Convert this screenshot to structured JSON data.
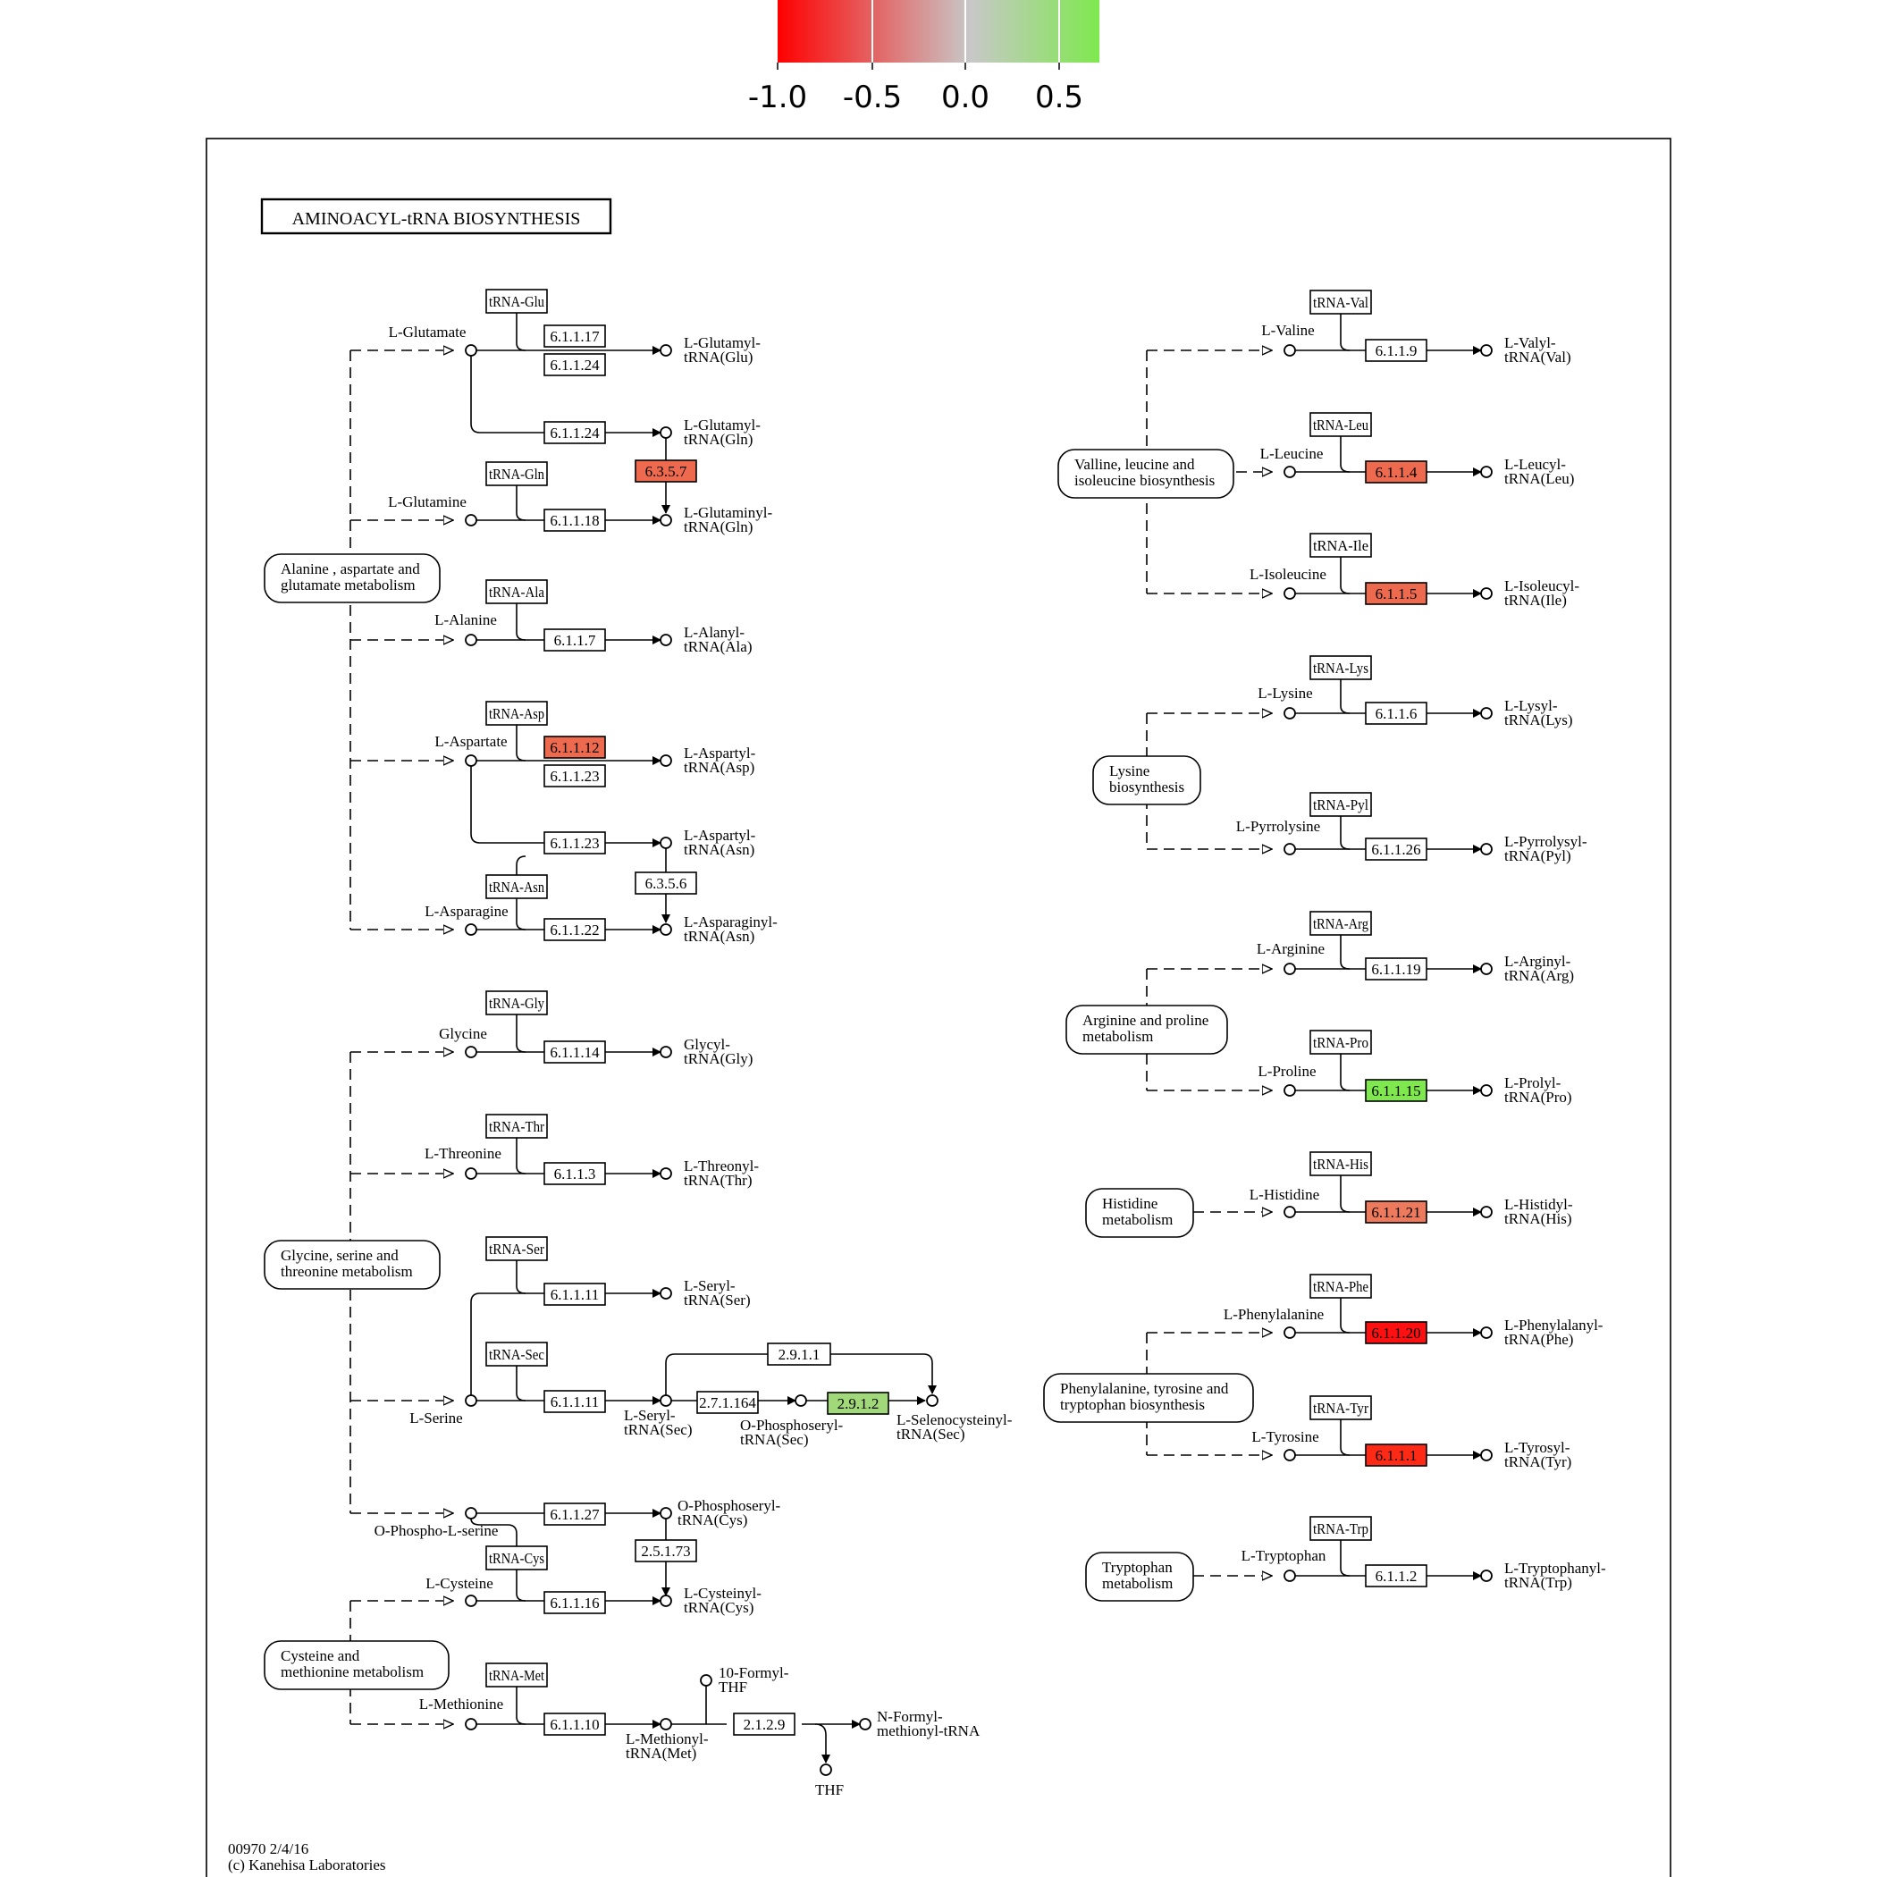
{
  "colorbar": {
    "ticks": [
      "-1.0",
      "-0.5",
      "0.0",
      "0.5"
    ],
    "gradient": [
      "#ff0000",
      "#c8c8c8",
      "#7fe84f"
    ]
  },
  "title": "AMINOACYL-tRNA  BIOSYNTHESIS",
  "footer": {
    "line1": "00970 2/4/16",
    "line2": "(c) Kanehisa Laboratories"
  },
  "pathways": [
    "Alanine , aspartate and glutamate metabolism",
    "Glycine, serine and threonine metabolism",
    "Cysteine and methionine metabolism",
    "Valline, leucine and isoleucine biosynthesis",
    "Lysine biosynthesis",
    "Arginine and proline metabolism",
    "Histidine metabolism",
    "Phenylalanine, tyrosine and tryptophan biosynthesis",
    "Tryptophan metabolism"
  ],
  "trnas": [
    "tRNA-Glu",
    "tRNA-Gln",
    "tRNA-Ala",
    "tRNA-Asp",
    "tRNA-Asn",
    "tRNA-Gly",
    "tRNA-Thr",
    "tRNA-Ser",
    "tRNA-Sec",
    "tRNA-Cys",
    "tRNA-Met",
    "tRNA-Val",
    "tRNA-Leu",
    "tRNA-Ile",
    "tRNA-Lys",
    "tRNA-Pyl",
    "tRNA-Arg",
    "tRNA-Pro",
    "tRNA-His",
    "tRNA-Phe",
    "tRNA-Tyr",
    "tRNA-Trp"
  ],
  "enzymes": [
    {
      "label": "6.1.1.17",
      "color": "#ffffff"
    },
    {
      "label": "6.1.1.24",
      "color": "#ffffff"
    },
    {
      "label": "6.1.1.24",
      "color": "#ffffff"
    },
    {
      "label": "6.3.5.7",
      "color": "#ee6a4e"
    },
    {
      "label": "6.1.1.18",
      "color": "#ffffff"
    },
    {
      "label": "6.1.1.7",
      "color": "#ffffff"
    },
    {
      "label": "6.1.1.12",
      "color": "#ee6a4e"
    },
    {
      "label": "6.1.1.23",
      "color": "#ffffff"
    },
    {
      "label": "6.1.1.23",
      "color": "#ffffff"
    },
    {
      "label": "6.3.5.6",
      "color": "#ffffff"
    },
    {
      "label": "6.1.1.22",
      "color": "#ffffff"
    },
    {
      "label": "6.1.1.14",
      "color": "#ffffff"
    },
    {
      "label": "6.1.1.3",
      "color": "#ffffff"
    },
    {
      "label": "6.1.1.11",
      "color": "#ffffff"
    },
    {
      "label": "6.1.1.11",
      "color": "#ffffff"
    },
    {
      "label": "2.9.1.1",
      "color": "#ffffff"
    },
    {
      "label": "2.7.1.164",
      "color": "#ffffff"
    },
    {
      "label": "2.9.1.2",
      "color": "#a0d87a"
    },
    {
      "label": "6.1.1.27",
      "color": "#ffffff"
    },
    {
      "label": "2.5.1.73",
      "color": "#ffffff"
    },
    {
      "label": "6.1.1.16",
      "color": "#ffffff"
    },
    {
      "label": "6.1.1.10",
      "color": "#ffffff"
    },
    {
      "label": "2.1.2.9",
      "color": "#ffffff"
    },
    {
      "label": "6.1.1.9",
      "color": "#ffffff"
    },
    {
      "label": "6.1.1.4",
      "color": "#ee6a4e"
    },
    {
      "label": "6.1.1.5",
      "color": "#ee6a4e"
    },
    {
      "label": "6.1.1.6",
      "color": "#ffffff"
    },
    {
      "label": "6.1.1.26",
      "color": "#ffffff"
    },
    {
      "label": "6.1.1.19",
      "color": "#ffffff"
    },
    {
      "label": "6.1.1.15",
      "color": "#7fe84f"
    },
    {
      "label": "6.1.1.21",
      "color": "#ee7a5e"
    },
    {
      "label": "6.1.1.20",
      "color": "#ff1010"
    },
    {
      "label": "6.1.1.1",
      "color": "#ff2a15"
    },
    {
      "label": "6.1.1.2",
      "color": "#ffffff"
    }
  ],
  "compounds": {
    "L-Glutamate": "L-Glutamate",
    "L-Glutamine": "L-Glutamine",
    "L-Alanine": "L-Alanine",
    "L-Aspartate": "L-Aspartate",
    "L-Asparagine": "L-Asparagine",
    "Glycine": "Glycine",
    "L-Threonine": "L-Threonine",
    "L-Serine": "L-Serine",
    "O-Phospho-L-serine": "O-Phospho-L-serine",
    "L-Cysteine": "L-Cysteine",
    "L-Methionine": "L-Methionine",
    "L-Valine": "L-Valine",
    "L-Leucine": "L-Leucine",
    "L-Isoleucine": "L-Isoleucine",
    "L-Lysine": "L-Lysine",
    "L-Pyrrolysine": "L-Pyrrolysine",
    "L-Arginine": "L-Arginine",
    "L-Proline": "L-Proline",
    "L-Histidine": "L-Histidine",
    "L-Phenylalanine": "L-Phenylalanine",
    "L-Tyrosine": "L-Tyrosine",
    "L-Tryptophan": "L-Tryptophan",
    "THF": "THF"
  },
  "products": [
    "L-Glutamyl-|tRNA(Glu)",
    "L-Glutamyl-|tRNA(Gln)",
    "L-Glutaminyl-|tRNA(Gln)",
    "L-Alanyl-|tRNA(Ala)",
    "L-Aspartyl-|tRNA(Asp)",
    "L-Aspartyl-|tRNA(Asn)",
    "L-Asparaginyl-|tRNA(Asn)",
    "Glycyl-|tRNA(Gly)",
    "L-Threonyl-|tRNA(Thr)",
    "L-Seryl-|tRNA(Ser)",
    "L-Seryl-|tRNA(Sec)",
    "O-Phosphoseryl-|tRNA(Sec)",
    "L-Selenocysteinyl-|tRNA(Sec)",
    "O-Phosphoseryl-|tRNA(Cys)",
    "L-Cysteinyl-|tRNA(Cys)",
    "L-Methionyl-|tRNA(Met)",
    "10-Formyl-|THF",
    "N-Formyl-|methionyl-tRNA",
    "L-Valyl-|tRNA(Val)",
    "L-Leucyl-|tRNA(Leu)",
    "L-Isoleucyl-|tRNA(Ile)",
    "L-Lysyl-|tRNA(Lys)",
    "L-Pyrrolysyl-|tRNA(Pyl)",
    "L-Arginyl-|tRNA(Arg)",
    "L-Prolyl-|tRNA(Pro)",
    "L-Histidyl-|tRNA(His)",
    "L-Phenylalanyl-|tRNA(Phe)",
    "L-Tyrosyl-|tRNA(Tyr)",
    "L-Tryptophanyl-|tRNA(Trp)"
  ]
}
